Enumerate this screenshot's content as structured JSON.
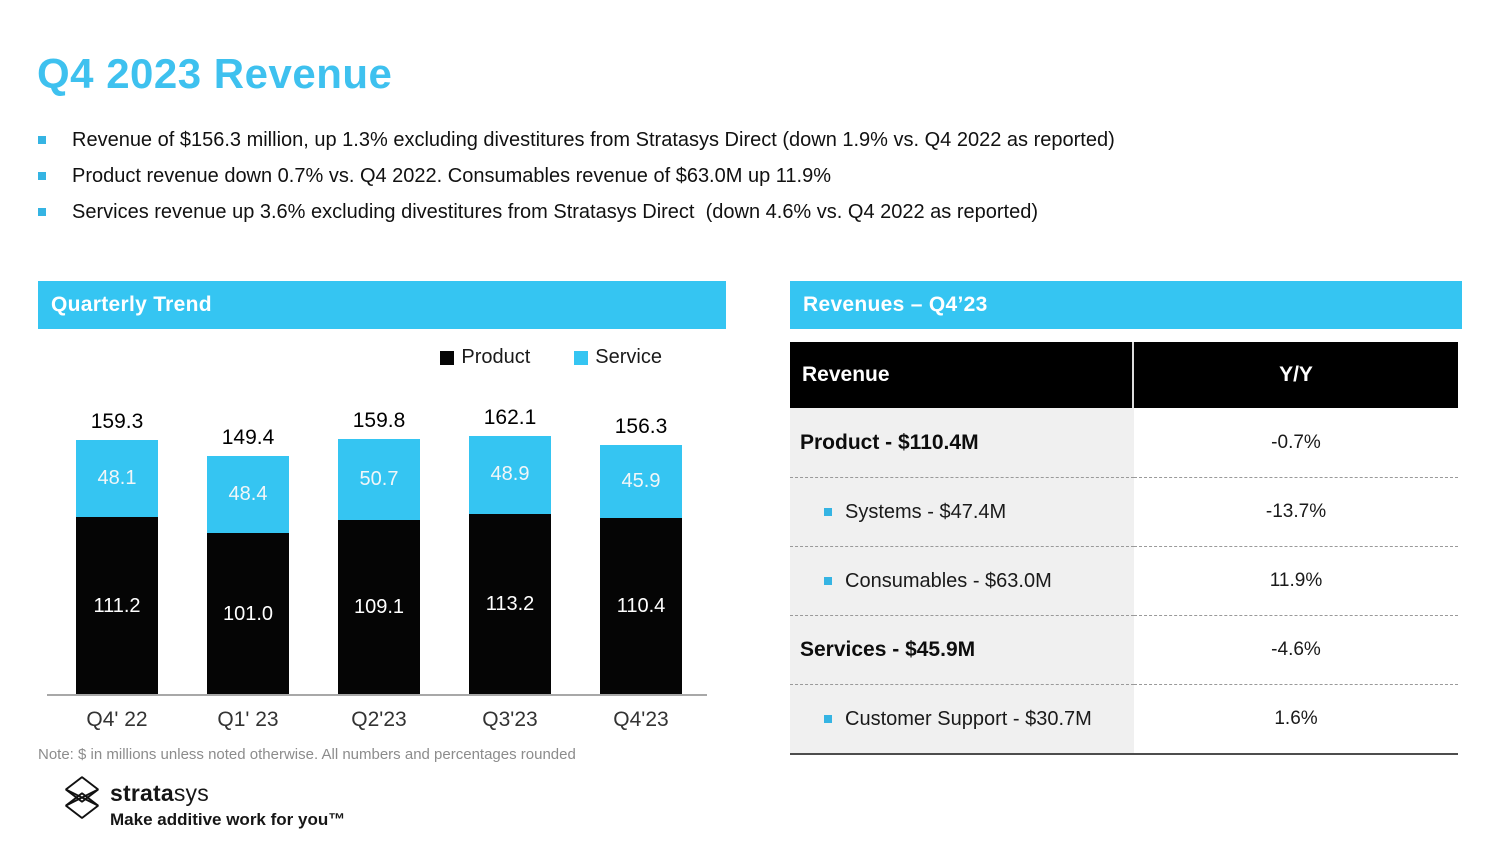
{
  "page": {
    "title": "Q4 2023 Revenue"
  },
  "bullets": [
    "Revenue of $156.3 million, up 1.3% excluding divestitures from Stratasys Direct (down 1.9% vs. Q4 2022 as reported)",
    "Product revenue down 0.7% vs. Q4 2022. Consumables revenue of $63.0M up 11.9%",
    "Services revenue up 3.6% excluding divestitures from Stratasys Direct  (down 4.6% vs. Q4 2022 as reported)"
  ],
  "colors": {
    "accent_cyan": "#35c5f2",
    "bar_product_black": "#050505",
    "table_left_col_bg": "#f0f0f0"
  },
  "chart_panel": {
    "header": "Quarterly Trend",
    "legend": [
      {
        "label": "Product",
        "color": "#050505"
      },
      {
        "label": "Service",
        "color": "#35c5f2"
      }
    ]
  },
  "chart_data": {
    "type": "bar",
    "stacked": true,
    "title": "Quarterly Trend",
    "unit": "$ millions",
    "grid": false,
    "legend_position": "top-right",
    "categories": [
      "Q4' 22",
      "Q1' 23",
      "Q2'23",
      "Q3'23",
      "Q4'23"
    ],
    "series": [
      {
        "name": "Product",
        "color": "#050505",
        "values": [
          111.2,
          101.0,
          109.1,
          113.2,
          110.4
        ]
      },
      {
        "name": "Service",
        "color": "#35c5f2",
        "values": [
          48.1,
          48.4,
          50.7,
          48.9,
          45.9
        ]
      }
    ],
    "totals": [
      159.3,
      149.4,
      159.8,
      162.1,
      156.3
    ]
  },
  "table_panel": {
    "header": "Revenues – Q4’23",
    "columns": [
      "Revenue",
      "Y/Y"
    ],
    "rows": [
      {
        "label": "Product - $110.4M",
        "yy": "-0.7%",
        "style": "main"
      },
      {
        "label": "Systems - $47.4M",
        "yy": "-13.7%",
        "style": "sub"
      },
      {
        "label": "Consumables - $63.0M",
        "yy": "11.9%",
        "style": "sub"
      },
      {
        "label": "Services - $45.9M",
        "yy": "-4.6%",
        "style": "main"
      },
      {
        "label": "Customer Support - $30.7M",
        "yy": "1.6%",
        "style": "sub"
      }
    ]
  },
  "footnote": "Note: $ in millions unless noted otherwise. All numbers and percentages rounded",
  "logo": {
    "brand_bold": "strata",
    "brand_light": "sys",
    "tagline": "Make additive work for you™"
  }
}
